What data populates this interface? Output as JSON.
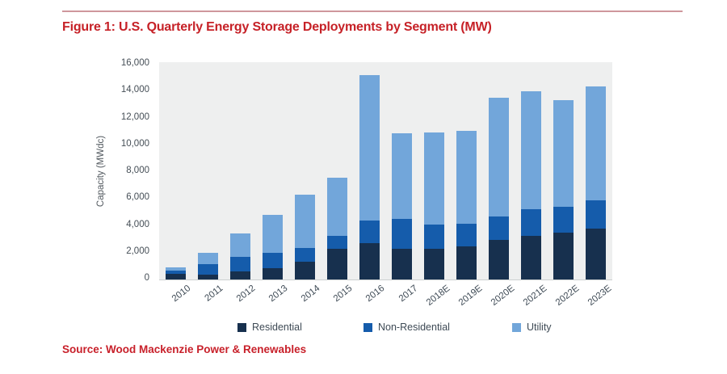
{
  "page": {
    "title": "Figure 1: U.S. Quarterly Energy Storage Deployments by Segment (MW)",
    "source": "Source: Wood Mackenzie Power & Renewables"
  },
  "colors": {
    "title_red": "#c62127",
    "rule_red": "#cf979c",
    "plot_background": "#eeefef",
    "axis_text": "#454e56",
    "residential": "#17304e",
    "non_residential": "#155cab",
    "utility": "#72a6da"
  },
  "chart_data": {
    "type": "bar",
    "stacked": true,
    "title": "Figure 1: U.S. Quarterly Energy Storage Deployments by Segment (MW)",
    "xlabel": "",
    "ylabel": "Capacity (MWdc)",
    "ylim": [
      0,
      16000
    ],
    "ytick_interval": 2000,
    "ytick_labels": [
      "0",
      "2,000",
      "4,000",
      "6,000",
      "8,000",
      "10,000",
      "12,000",
      "14,000",
      "16,000"
    ],
    "grid": false,
    "legend_position": "bottom",
    "categories": [
      "2010",
      "2011",
      "2012",
      "2013",
      "2014",
      "2015",
      "2016",
      "2017",
      "2018E",
      "2019E",
      "2020E",
      "2021E",
      "2022E",
      "2023E"
    ],
    "series": [
      {
        "name": "Residential",
        "color": "#17304e",
        "values": [
          400,
          350,
          600,
          850,
          1300,
          2250,
          2700,
          2250,
          2250,
          2450,
          2950,
          3250,
          3450,
          3800
        ]
      },
      {
        "name": "Non-Residential",
        "color": "#155cab",
        "values": [
          250,
          800,
          1050,
          1150,
          1050,
          1000,
          1700,
          2250,
          1850,
          1700,
          1700,
          1950,
          1950,
          2100
        ]
      },
      {
        "name": "Utility",
        "color": "#72a6da",
        "values": [
          250,
          850,
          1750,
          2800,
          3950,
          4300,
          10750,
          6350,
          6800,
          6900,
          8850,
          8750,
          7900,
          8400
        ]
      }
    ],
    "totals": [
      900,
      2000,
      3400,
      4800,
      6300,
      7550,
      15150,
      10850,
      10900,
      11050,
      13500,
      13950,
      13300,
      14300
    ]
  }
}
